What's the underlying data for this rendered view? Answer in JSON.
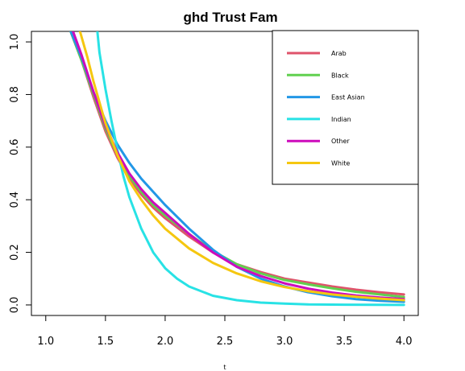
{
  "chart_data": {
    "type": "line",
    "title": "ghd Trust Fam",
    "xlabel": "t",
    "ylabel": "",
    "xlim": [
      0.88,
      4.12
    ],
    "ylim": [
      -0.04,
      1.04
    ],
    "x_ticks": [
      "1.0",
      "1.5",
      "2.0",
      "2.5",
      "3.0",
      "3.5",
      "4.0"
    ],
    "y_ticks": [
      "0.0",
      "0.2",
      "0.4",
      "0.6",
      "0.8",
      "1.0"
    ],
    "grid": false,
    "legend_position": "top-right",
    "series": [
      {
        "name": "Arab",
        "color": "#DF536B",
        "x": [
          1.2,
          1.3,
          1.4,
          1.5,
          1.6,
          1.7,
          1.8,
          1.9,
          2.0,
          2.2,
          2.4,
          2.6,
          2.8,
          3.0,
          3.2,
          3.4,
          3.6,
          3.8,
          4.0
        ],
        "y": [
          1.05,
          0.93,
          0.79,
          0.66,
          0.56,
          0.48,
          0.42,
          0.37,
          0.33,
          0.26,
          0.2,
          0.155,
          0.125,
          0.1,
          0.085,
          0.07,
          0.058,
          0.048,
          0.04
        ]
      },
      {
        "name": "Black",
        "color": "#61D04F",
        "x": [
          1.2,
          1.3,
          1.4,
          1.5,
          1.6,
          1.7,
          1.8,
          1.9,
          2.0,
          2.2,
          2.4,
          2.6,
          2.8,
          3.0,
          3.2,
          3.4,
          3.6,
          3.8,
          4.0
        ],
        "y": [
          1.05,
          0.93,
          0.8,
          0.67,
          0.57,
          0.49,
          0.43,
          0.38,
          0.34,
          0.27,
          0.205,
          0.155,
          0.12,
          0.095,
          0.078,
          0.063,
          0.05,
          0.04,
          0.03
        ]
      },
      {
        "name": "East Asian",
        "color": "#2297E6",
        "x": [
          1.2,
          1.3,
          1.4,
          1.5,
          1.6,
          1.7,
          1.8,
          1.9,
          2.0,
          2.2,
          2.4,
          2.6,
          2.8,
          3.0,
          3.2,
          3.4,
          3.6,
          3.8,
          4.0
        ],
        "y": [
          1.05,
          0.94,
          0.81,
          0.7,
          0.61,
          0.54,
          0.48,
          0.43,
          0.38,
          0.29,
          0.21,
          0.145,
          0.1,
          0.07,
          0.048,
          0.033,
          0.022,
          0.016,
          0.012
        ]
      },
      {
        "name": "Indian",
        "color": "#28E2E5",
        "x": [
          1.43,
          1.45,
          1.5,
          1.55,
          1.6,
          1.65,
          1.7,
          1.8,
          1.9,
          2.0,
          2.1,
          2.2,
          2.4,
          2.6,
          2.8,
          3.0,
          3.2,
          3.5,
          4.0
        ],
        "y": [
          1.05,
          0.96,
          0.82,
          0.7,
          0.59,
          0.49,
          0.41,
          0.29,
          0.2,
          0.14,
          0.1,
          0.07,
          0.035,
          0.018,
          0.009,
          0.005,
          0.002,
          0.001,
          0.0
        ]
      },
      {
        "name": "Other",
        "color": "#CD0BBC",
        "x": [
          1.22,
          1.3,
          1.4,
          1.5,
          1.6,
          1.7,
          1.8,
          1.9,
          2.0,
          2.2,
          2.4,
          2.6,
          2.8,
          3.0,
          3.2,
          3.4,
          3.6,
          3.8,
          4.0
        ],
        "y": [
          1.05,
          0.95,
          0.81,
          0.68,
          0.58,
          0.5,
          0.44,
          0.39,
          0.35,
          0.27,
          0.2,
          0.145,
          0.11,
          0.082,
          0.062,
          0.047,
          0.036,
          0.028,
          0.022
        ]
      },
      {
        "name": "White",
        "color": "#F5C710",
        "x": [
          1.28,
          1.35,
          1.4,
          1.5,
          1.6,
          1.7,
          1.8,
          1.9,
          2.0,
          2.2,
          2.4,
          2.6,
          2.8,
          3.0,
          3.2,
          3.4,
          3.6,
          3.8,
          4.0
        ],
        "y": [
          1.05,
          0.94,
          0.85,
          0.69,
          0.57,
          0.47,
          0.4,
          0.34,
          0.29,
          0.215,
          0.16,
          0.12,
          0.09,
          0.068,
          0.052,
          0.04,
          0.031,
          0.024,
          0.018
        ]
      }
    ]
  }
}
